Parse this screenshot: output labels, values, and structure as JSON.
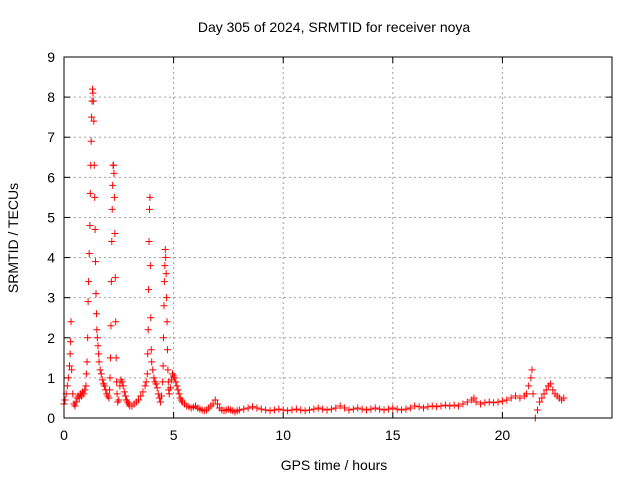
{
  "chart_data": {
    "type": "scatter",
    "title": "Day 305 of 2024, SRMTID for receiver noya",
    "xlabel": "GPS time / hours",
    "ylabel": "SRMTID / TECUs",
    "xlim": [
      0,
      25
    ],
    "ylim": [
      0,
      9
    ],
    "xticks": [
      0,
      5,
      10,
      15,
      20
    ],
    "yticks": [
      0,
      1,
      2,
      3,
      4,
      5,
      6,
      7,
      8,
      9
    ],
    "grid": true,
    "marker": "+",
    "color": "#ff0000",
    "series": [
      {
        "name": "SRMTID",
        "points": [
          [
            0.0,
            0.35
          ],
          [
            0.05,
            0.45
          ],
          [
            0.1,
            0.6
          ],
          [
            0.15,
            0.8
          ],
          [
            0.2,
            1.0
          ],
          [
            0.25,
            1.3
          ],
          [
            0.28,
            1.6
          ],
          [
            0.3,
            1.9
          ],
          [
            0.32,
            2.4
          ],
          [
            0.35,
            1.2
          ],
          [
            0.4,
            0.6
          ],
          [
            0.45,
            0.35
          ],
          [
            0.5,
            0.3
          ],
          [
            0.55,
            0.4
          ],
          [
            0.6,
            0.5
          ],
          [
            0.65,
            0.55
          ],
          [
            0.7,
            0.5
          ],
          [
            0.75,
            0.6
          ],
          [
            0.8,
            0.55
          ],
          [
            0.85,
            0.65
          ],
          [
            0.9,
            0.6
          ],
          [
            0.95,
            0.7
          ],
          [
            1.0,
            0.8
          ],
          [
            1.02,
            1.1
          ],
          [
            1.05,
            1.4
          ],
          [
            1.08,
            2.0
          ],
          [
            1.1,
            2.9
          ],
          [
            1.12,
            3.4
          ],
          [
            1.15,
            4.1
          ],
          [
            1.18,
            4.8
          ],
          [
            1.2,
            5.6
          ],
          [
            1.22,
            6.3
          ],
          [
            1.24,
            6.9
          ],
          [
            1.26,
            7.5
          ],
          [
            1.28,
            7.9
          ],
          [
            1.3,
            8.2
          ],
          [
            1.32,
            8.1
          ],
          [
            1.34,
            7.9
          ],
          [
            1.36,
            7.4
          ],
          [
            1.38,
            6.3
          ],
          [
            1.4,
            5.5
          ],
          [
            1.42,
            4.7
          ],
          [
            1.44,
            3.9
          ],
          [
            1.46,
            3.1
          ],
          [
            1.48,
            2.6
          ],
          [
            1.5,
            2.2
          ],
          [
            1.52,
            2.0
          ],
          [
            1.55,
            1.8
          ],
          [
            1.58,
            1.6
          ],
          [
            1.6,
            1.4
          ],
          [
            1.65,
            1.2
          ],
          [
            1.7,
            1.1
          ],
          [
            1.75,
            0.95
          ],
          [
            1.8,
            0.85
          ],
          [
            1.85,
            0.8
          ],
          [
            1.9,
            0.7
          ],
          [
            1.95,
            0.6
          ],
          [
            2.0,
            0.55
          ],
          [
            2.05,
            0.5
          ],
          [
            2.08,
            0.7
          ],
          [
            2.1,
            1.0
          ],
          [
            2.12,
            1.5
          ],
          [
            2.14,
            2.3
          ],
          [
            2.16,
            3.4
          ],
          [
            2.18,
            4.4
          ],
          [
            2.2,
            5.2
          ],
          [
            2.22,
            5.8
          ],
          [
            2.24,
            6.3
          ],
          [
            2.26,
            6.3
          ],
          [
            2.28,
            6.1
          ],
          [
            2.3,
            5.5
          ],
          [
            2.32,
            4.6
          ],
          [
            2.34,
            3.5
          ],
          [
            2.36,
            2.4
          ],
          [
            2.38,
            1.5
          ],
          [
            2.4,
            0.9
          ],
          [
            2.42,
            0.6
          ],
          [
            2.45,
            0.4
          ],
          [
            2.5,
            0.45
          ],
          [
            2.55,
            0.8
          ],
          [
            2.6,
            0.95
          ],
          [
            2.65,
            0.9
          ],
          [
            2.7,
            0.8
          ],
          [
            2.75,
            0.65
          ],
          [
            2.8,
            0.55
          ],
          [
            2.85,
            0.45
          ],
          [
            2.9,
            0.4
          ],
          [
            2.95,
            0.35
          ],
          [
            3.0,
            0.3
          ],
          [
            3.1,
            0.3
          ],
          [
            3.2,
            0.35
          ],
          [
            3.3,
            0.4
          ],
          [
            3.4,
            0.45
          ],
          [
            3.5,
            0.55
          ],
          [
            3.6,
            0.65
          ],
          [
            3.7,
            0.8
          ],
          [
            3.75,
            0.9
          ],
          [
            3.8,
            1.1
          ],
          [
            3.82,
            1.6
          ],
          [
            3.84,
            2.2
          ],
          [
            3.86,
            3.2
          ],
          [
            3.88,
            4.4
          ],
          [
            3.9,
            5.2
          ],
          [
            3.92,
            5.5
          ],
          [
            3.94,
            3.8
          ],
          [
            3.96,
            2.5
          ],
          [
            3.98,
            1.7
          ],
          [
            4.0,
            1.4
          ],
          [
            4.05,
            1.2
          ],
          [
            4.1,
            1.0
          ],
          [
            4.15,
            0.9
          ],
          [
            4.2,
            0.85
          ],
          [
            4.25,
            0.75
          ],
          [
            4.3,
            0.6
          ],
          [
            4.35,
            0.5
          ],
          [
            4.4,
            0.4
          ],
          [
            4.45,
            0.55
          ],
          [
            4.5,
            0.9
          ],
          [
            4.52,
            1.3
          ],
          [
            4.54,
            2.0
          ],
          [
            4.56,
            2.8
          ],
          [
            4.58,
            3.4
          ],
          [
            4.6,
            3.8
          ],
          [
            4.62,
            4.2
          ],
          [
            4.64,
            4.0
          ],
          [
            4.66,
            3.6
          ],
          [
            4.68,
            3.0
          ],
          [
            4.7,
            2.4
          ],
          [
            4.72,
            1.7
          ],
          [
            4.74,
            1.2
          ],
          [
            4.76,
            0.9
          ],
          [
            4.78,
            0.7
          ],
          [
            4.8,
            0.6
          ],
          [
            4.85,
            0.75
          ],
          [
            4.9,
            0.95
          ],
          [
            4.95,
            1.1
          ],
          [
            5.0,
            1.05
          ],
          [
            5.05,
            1.0
          ],
          [
            5.1,
            0.9
          ],
          [
            5.15,
            0.8
          ],
          [
            5.2,
            0.7
          ],
          [
            5.25,
            0.6
          ],
          [
            5.3,
            0.5
          ],
          [
            5.35,
            0.45
          ],
          [
            5.4,
            0.4
          ],
          [
            5.5,
            0.35
          ],
          [
            5.6,
            0.3
          ],
          [
            5.7,
            0.28
          ],
          [
            5.8,
            0.25
          ],
          [
            5.9,
            0.27
          ],
          [
            6.0,
            0.3
          ],
          [
            6.1,
            0.25
          ],
          [
            6.2,
            0.22
          ],
          [
            6.3,
            0.2
          ],
          [
            6.4,
            0.18
          ],
          [
            6.5,
            0.2
          ],
          [
            6.6,
            0.25
          ],
          [
            6.7,
            0.3
          ],
          [
            6.8,
            0.35
          ],
          [
            6.9,
            0.45
          ],
          [
            7.0,
            0.35
          ],
          [
            7.1,
            0.25
          ],
          [
            7.2,
            0.2
          ],
          [
            7.3,
            0.18
          ],
          [
            7.4,
            0.2
          ],
          [
            7.5,
            0.22
          ],
          [
            7.6,
            0.2
          ],
          [
            7.7,
            0.18
          ],
          [
            7.8,
            0.15
          ],
          [
            7.9,
            0.18
          ],
          [
            8.0,
            0.2
          ],
          [
            8.2,
            0.22
          ],
          [
            8.4,
            0.25
          ],
          [
            8.6,
            0.28
          ],
          [
            8.8,
            0.25
          ],
          [
            9.0,
            0.22
          ],
          [
            9.2,
            0.2
          ],
          [
            9.4,
            0.18
          ],
          [
            9.6,
            0.2
          ],
          [
            9.8,
            0.22
          ],
          [
            10.0,
            0.2
          ],
          [
            10.2,
            0.18
          ],
          [
            10.4,
            0.2
          ],
          [
            10.6,
            0.22
          ],
          [
            10.8,
            0.2
          ],
          [
            11.0,
            0.18
          ],
          [
            11.2,
            0.2
          ],
          [
            11.4,
            0.22
          ],
          [
            11.6,
            0.25
          ],
          [
            11.8,
            0.22
          ],
          [
            12.0,
            0.2
          ],
          [
            12.2,
            0.22
          ],
          [
            12.4,
            0.25
          ],
          [
            12.6,
            0.3
          ],
          [
            12.8,
            0.25
          ],
          [
            13.0,
            0.2
          ],
          [
            13.2,
            0.22
          ],
          [
            13.4,
            0.25
          ],
          [
            13.6,
            0.22
          ],
          [
            13.8,
            0.2
          ],
          [
            14.0,
            0.22
          ],
          [
            14.2,
            0.25
          ],
          [
            14.4,
            0.22
          ],
          [
            14.6,
            0.2
          ],
          [
            14.8,
            0.22
          ],
          [
            15.0,
            0.25
          ],
          [
            15.2,
            0.22
          ],
          [
            15.4,
            0.2
          ],
          [
            15.6,
            0.22
          ],
          [
            15.8,
            0.25
          ],
          [
            16.0,
            0.3
          ],
          [
            16.2,
            0.28
          ],
          [
            16.4,
            0.25
          ],
          [
            16.6,
            0.28
          ],
          [
            16.8,
            0.3
          ],
          [
            17.0,
            0.28
          ],
          [
            17.2,
            0.3
          ],
          [
            17.4,
            0.32
          ],
          [
            17.6,
            0.3
          ],
          [
            17.8,
            0.32
          ],
          [
            18.0,
            0.3
          ],
          [
            18.2,
            0.35
          ],
          [
            18.4,
            0.4
          ],
          [
            18.6,
            0.45
          ],
          [
            18.7,
            0.5
          ],
          [
            18.8,
            0.4
          ],
          [
            19.0,
            0.35
          ],
          [
            19.2,
            0.38
          ],
          [
            19.4,
            0.4
          ],
          [
            19.6,
            0.38
          ],
          [
            19.8,
            0.4
          ],
          [
            20.0,
            0.42
          ],
          [
            20.2,
            0.45
          ],
          [
            20.4,
            0.5
          ],
          [
            20.6,
            0.55
          ],
          [
            20.8,
            0.5
          ],
          [
            21.0,
            0.55
          ],
          [
            21.1,
            0.6
          ],
          [
            21.2,
            0.8
          ],
          [
            21.3,
            1.0
          ],
          [
            21.35,
            1.2
          ],
          [
            21.4,
            0.6
          ],
          [
            21.5,
            0.0
          ],
          [
            21.6,
            0.2
          ],
          [
            21.7,
            0.4
          ],
          [
            21.8,
            0.5
          ],
          [
            21.9,
            0.6
          ],
          [
            22.0,
            0.7
          ],
          [
            22.1,
            0.8
          ],
          [
            22.2,
            0.85
          ],
          [
            22.3,
            0.7
          ],
          [
            22.4,
            0.6
          ],
          [
            22.5,
            0.55
          ],
          [
            22.6,
            0.5
          ],
          [
            22.7,
            0.45
          ],
          [
            22.8,
            0.5
          ]
        ]
      }
    ]
  }
}
